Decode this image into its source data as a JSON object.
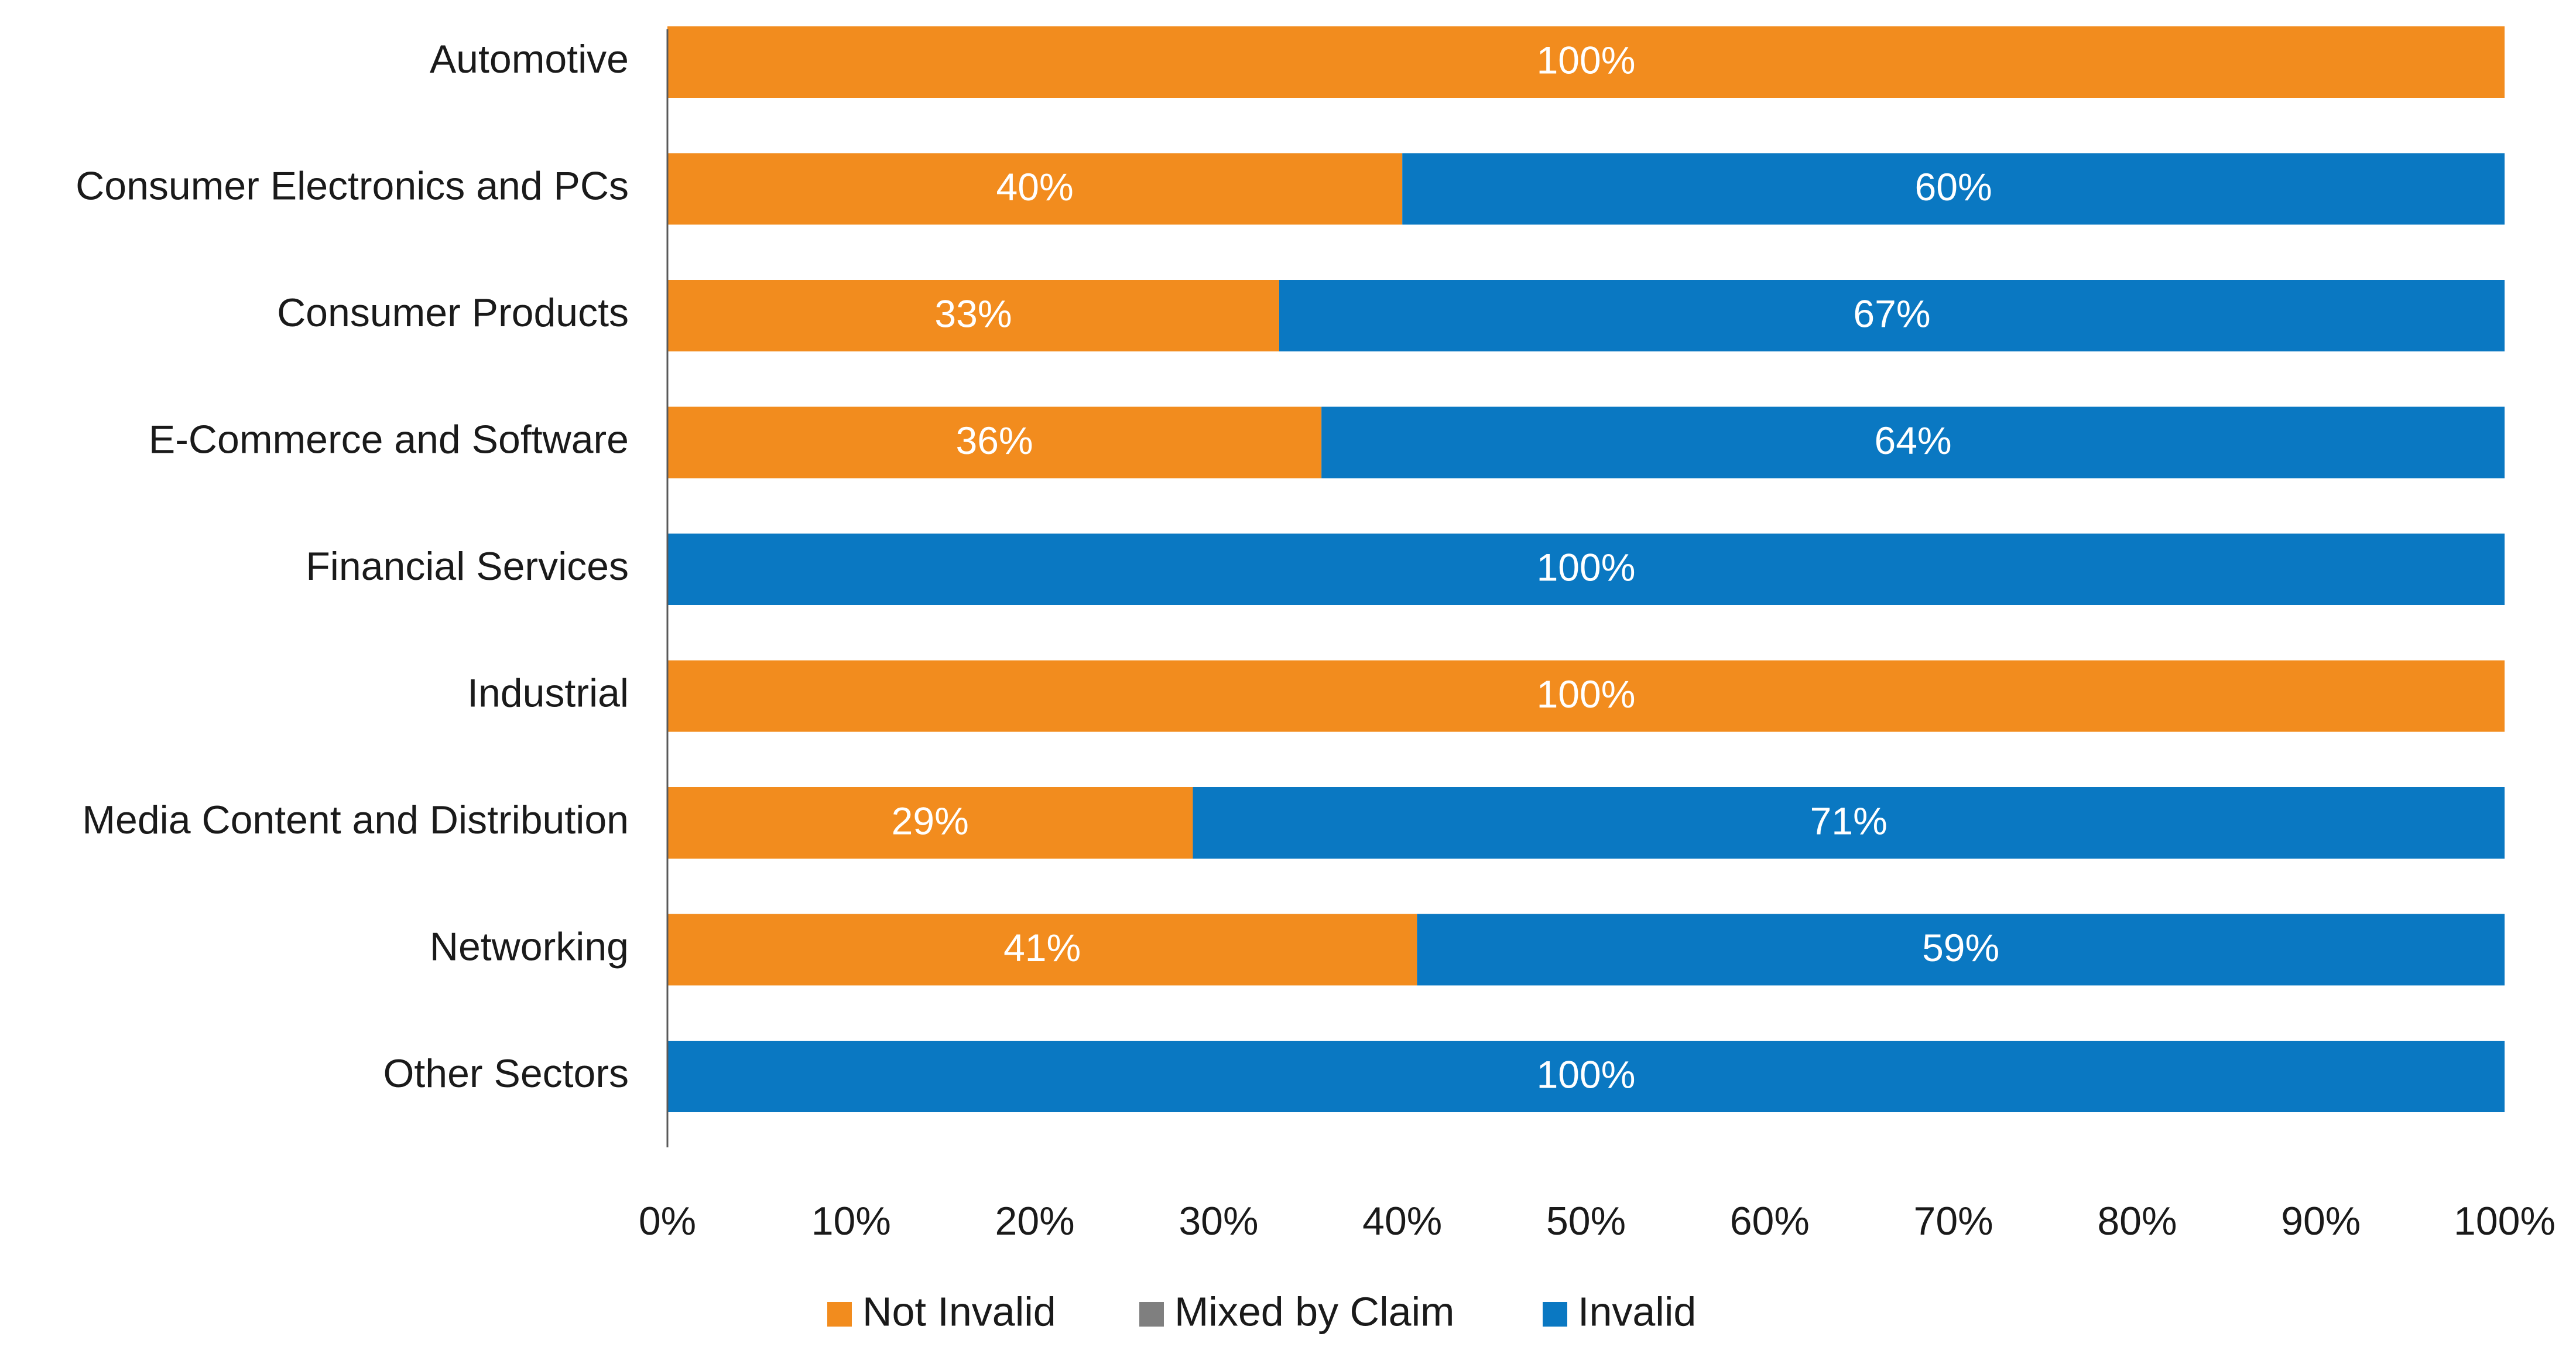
{
  "chart_data": {
    "type": "bar",
    "orientation": "horizontal",
    "stacked": true,
    "categories": [
      "Automotive",
      "Consumer Electronics and PCs",
      "Consumer Products",
      "E-Commerce and Software",
      "Financial Services",
      "Industrial",
      "Media Content and Distribution",
      "Networking",
      "Other Sectors"
    ],
    "series": [
      {
        "name": "Not Invalid",
        "color": "#F28C1E",
        "values": [
          100,
          40,
          33.3,
          35.6,
          0,
          100,
          28.6,
          40.8,
          0
        ],
        "labels": [
          "100%",
          "40%",
          "33%",
          "36%",
          "",
          "100%",
          "29%",
          "41%",
          ""
        ]
      },
      {
        "name": "Mixed by Claim",
        "color": "#7F7F7F",
        "values": [
          0,
          0,
          0,
          0,
          0,
          0,
          0,
          0,
          0
        ],
        "labels": [
          "",
          "",
          "",
          "",
          "",
          "",
          "",
          "",
          ""
        ]
      },
      {
        "name": "Invalid",
        "color": "#0A78C2",
        "values": [
          0,
          60,
          66.7,
          64.4,
          100,
          0,
          71.4,
          59.2,
          100
        ],
        "labels": [
          "",
          "60%",
          "67%",
          "64%",
          "100%",
          "",
          "71%",
          "59%",
          "100%"
        ]
      }
    ],
    "xlim": [
      0,
      100
    ],
    "xticks": [
      "0%",
      "10%",
      "20%",
      "30%",
      "40%",
      "50%",
      "60%",
      "70%",
      "80%",
      "90%",
      "100%"
    ],
    "grid": false,
    "legend_position": "bottom"
  }
}
